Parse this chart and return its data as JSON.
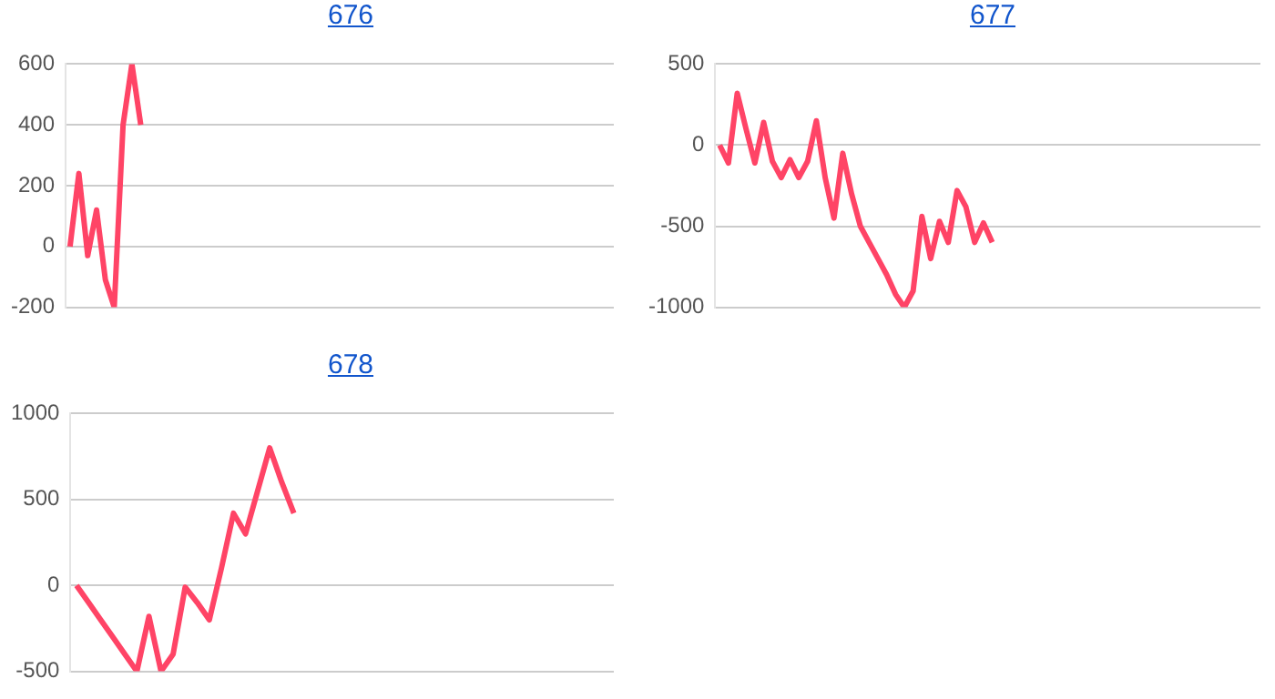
{
  "chart_data": [
    {
      "type": "line",
      "title": "676",
      "categories": [
        null,
        null,
        null,
        null,
        null,
        null,
        null,
        null,
        null,
        null,
        null,
        null,
        null,
        null,
        null,
        null,
        null,
        null,
        null,
        null,
        null,
        null,
        null,
        null,
        null,
        null,
        null,
        null,
        null,
        null,
        null,
        null,
        null,
        null,
        null,
        null,
        null,
        null,
        null,
        null,
        null,
        null,
        null,
        null,
        null,
        null,
        null,
        null,
        null,
        null,
        null,
        null,
        null,
        null,
        null,
        null,
        null,
        null,
        null,
        null,
        null,
        null
      ],
      "series": [
        {
          "color": "#ff4466",
          "values": [
            0,
            240,
            -30,
            120,
            -110,
            -200,
            400,
            600,
            400,
            null,
            null,
            null,
            null,
            null,
            null,
            null,
            null,
            null,
            null,
            null,
            null,
            null,
            null,
            null,
            null,
            null,
            null,
            null,
            null,
            null,
            null,
            null,
            null,
            null,
            null,
            null,
            null,
            null,
            null,
            null,
            null,
            null,
            null,
            null,
            null,
            null,
            null,
            null,
            null,
            null,
            null,
            null,
            null,
            null,
            null,
            null,
            null,
            null,
            null,
            null,
            null,
            null
          ]
        }
      ],
      "ylim": [
        -200,
        600
      ],
      "yticks": [
        -200,
        0,
        200,
        400,
        600
      ],
      "grid": "y",
      "tick_labels": "y",
      "marker": "none"
    },
    {
      "type": "line",
      "title": "677",
      "categories": [
        null,
        null,
        null,
        null,
        null,
        null,
        null,
        null,
        null,
        null,
        null,
        null,
        null,
        null,
        null,
        null,
        null,
        null,
        null,
        null,
        null,
        null,
        null,
        null,
        null,
        null,
        null,
        null,
        null,
        null,
        null,
        null,
        null,
        null,
        null,
        null,
        null,
        null,
        null,
        null,
        null,
        null,
        null,
        null,
        null,
        null,
        null,
        null,
        null,
        null,
        null,
        null,
        null,
        null,
        null,
        null,
        null,
        null,
        null,
        null,
        null,
        null
      ],
      "series": [
        {
          "color": "#ff4466",
          "values": [
            0,
            -110,
            320,
            100,
            -110,
            140,
            -100,
            -200,
            -90,
            -200,
            -100,
            150,
            -200,
            -450,
            -50,
            -300,
            -500,
            -600,
            -700,
            -800,
            -920,
            -1000,
            -900,
            -440,
            -700,
            -470,
            -600,
            -280,
            -380,
            -600,
            -480,
            -600,
            null,
            null,
            null,
            null,
            null,
            null,
            null,
            null,
            null,
            null,
            null,
            null,
            null,
            null,
            null,
            null,
            null,
            null,
            null,
            null,
            null,
            null,
            null,
            null,
            null,
            null,
            null,
            null,
            null,
            null
          ]
        }
      ],
      "ylim": [
        -1000,
        500
      ],
      "yticks": [
        -1000,
        -500,
        0,
        500
      ],
      "grid": "y",
      "tick_labels": "y",
      "marker": "none"
    },
    {
      "type": "line",
      "title": "678",
      "categories": [
        null,
        null,
        null,
        null,
        null,
        null,
        null,
        null,
        null,
        null,
        null,
        null,
        null,
        null,
        null,
        null,
        null,
        null,
        null,
        null,
        null,
        null,
        null,
        null,
        null,
        null,
        null,
        null,
        null,
        null,
        null,
        null,
        null,
        null,
        null,
        null,
        null,
        null,
        null,
        null,
        null,
        null,
        null,
        null,
        null
      ],
      "series": [
        {
          "color": "#ff4466",
          "values": [
            0,
            -100,
            -200,
            -300,
            -400,
            -500,
            -180,
            -500,
            -400,
            -10,
            -100,
            -200,
            100,
            420,
            300,
            550,
            800,
            600,
            420,
            null,
            null,
            null,
            null,
            null,
            null,
            null,
            null,
            null,
            null,
            null,
            null,
            null,
            null,
            null,
            null,
            null,
            null,
            null,
            null,
            null,
            null,
            null,
            null,
            null,
            null
          ]
        }
      ],
      "ylim": [
        -500,
        1000
      ],
      "yticks": [
        -500,
        0,
        500,
        1000
      ],
      "grid": "y",
      "tick_labels": "y",
      "marker": "none"
    }
  ]
}
